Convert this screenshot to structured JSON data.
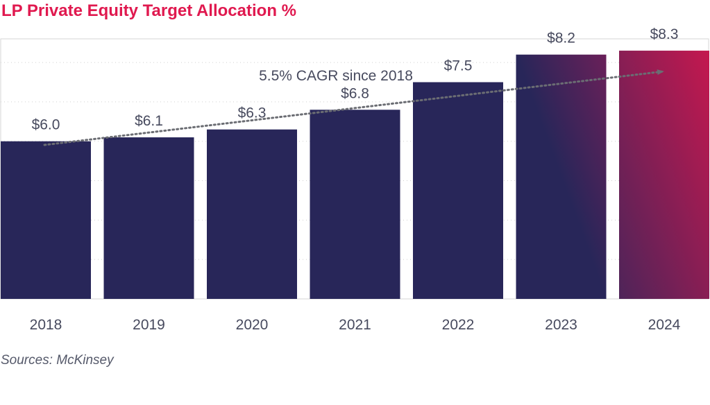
{
  "title": "LP Private Equity Target Allocation %",
  "source": "Sources: McKinsey",
  "colors": {
    "title": "#e0194f",
    "bar": "#282659",
    "highlight": "#c4184f",
    "text": "#474a5e",
    "trend": "#6b6d73",
    "grid": "#d0d0d0",
    "frame": "#d6d6d6"
  },
  "chart_data": {
    "type": "bar",
    "title": "LP Private Equity Target Allocation %",
    "xlabel": "",
    "ylabel": "",
    "categories": [
      "2018",
      "2019",
      "2020",
      "2021",
      "2022",
      "2023",
      "2024"
    ],
    "values": [
      6.0,
      6.1,
      6.3,
      6.8,
      7.5,
      8.2,
      8.3
    ],
    "labels": [
      "$6.0",
      "$6.1",
      "$6.3",
      "$6.8",
      "$7.5",
      "$8.2",
      "$8.3"
    ],
    "ylim": [
      2.0,
      8.6
    ],
    "grid": true,
    "legend": "none",
    "annotation": "5.5% CAGR since 2018",
    "gradient_bars": [
      "2023",
      "2024"
    ]
  }
}
